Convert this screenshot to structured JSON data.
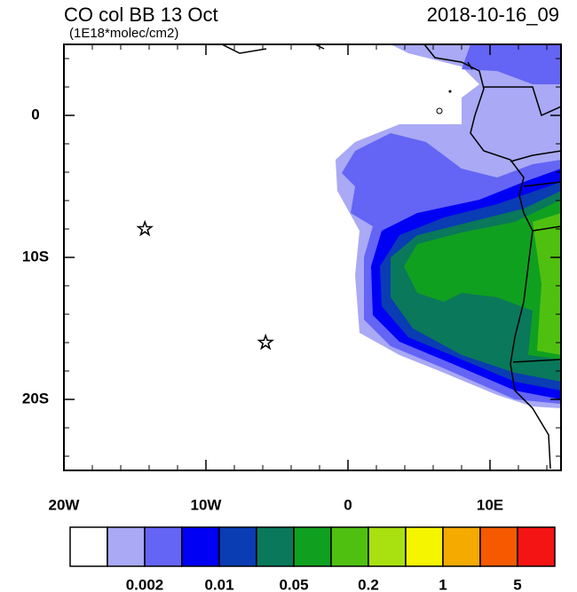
{
  "map": {
    "title": "CO col BB 13 Oct",
    "subtitle": "(1E18*molec/cm2)",
    "timestamp": "2018-10-16_09",
    "xlim": [
      -20,
      15
    ],
    "ylim": [
      -25,
      5
    ],
    "xticks": [
      {
        "value": -20,
        "label": "20W"
      },
      {
        "value": -10,
        "label": "10W"
      },
      0,
      {
        "value": 10,
        "label": "10E"
      }
    ],
    "yticks": [
      0,
      {
        "value": -10,
        "label": "10S"
      },
      {
        "value": -20,
        "label": "20S"
      }
    ],
    "x_minor_ticks": [
      -18,
      -16,
      -14,
      -12,
      -8,
      -6,
      -4,
      -2,
      2,
      4,
      6,
      8,
      12,
      14
    ],
    "y_minor_ticks": [
      4,
      2,
      -2,
      -4,
      -6,
      -8,
      -12,
      -14,
      -16,
      -18,
      -22,
      -24
    ],
    "markers": [
      {
        "lon": -14.3,
        "lat": -8
      },
      {
        "lon": -5.8,
        "lat": -16
      }
    ],
    "colorbar": {
      "colors": [
        "#ffffff",
        "#a9a9f5",
        "#6464f5",
        "#0000f5",
        "#0a3cb4",
        "#0a785a",
        "#10a020",
        "#50c010",
        "#a8e010",
        "#f5f500",
        "#f5aa00",
        "#f55a00",
        "#f51414"
      ],
      "labels": [
        "0.002",
        "0.01",
        "0.05",
        "0.2",
        "1",
        "5"
      ]
    }
  }
}
